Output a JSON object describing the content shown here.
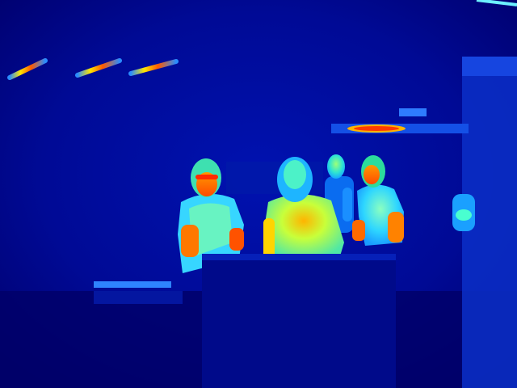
{
  "image": {
    "kind": "thermal-camera-frame",
    "palette": "jet",
    "palette_colors": {
      "coldest": "#00006e",
      "cold": "#0010c8",
      "cool": "#0a60ff",
      "mild": "#17c9ff",
      "warm": "#7dff83",
      "hot": "#ffd400",
      "hottest": "#ff3a00"
    },
    "subjects": [
      {
        "name": "person-left-glasses"
      },
      {
        "name": "person-center-back"
      },
      {
        "name": "person-rear-standing"
      },
      {
        "name": "person-right-polo"
      },
      {
        "name": "person-edge-right-partial"
      }
    ],
    "objects": [
      {
        "name": "ceiling-light-strips",
        "count": 3
      },
      {
        "name": "rear-fixture-light-row"
      },
      {
        "name": "foreground-counter"
      },
      {
        "name": "right-wall-panel"
      }
    ]
  }
}
